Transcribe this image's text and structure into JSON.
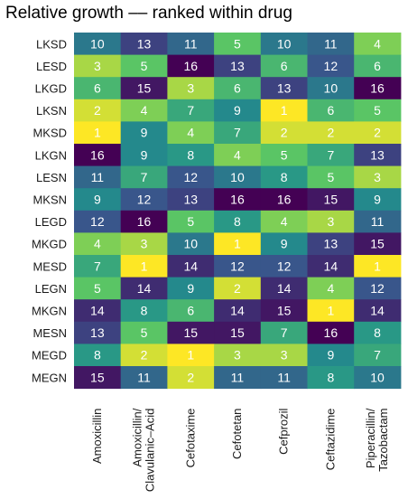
{
  "chart_data": {
    "type": "heatmap",
    "title": "Relative growth –– ranked within drug",
    "rows": [
      "LKSD",
      "LESD",
      "LKGD",
      "LKSN",
      "MKSD",
      "LKGN",
      "LESN",
      "MKSN",
      "LEGD",
      "MKGD",
      "MESD",
      "LEGN",
      "MKGN",
      "MESN",
      "MEGD",
      "MEGN"
    ],
    "columns": [
      "Amoxicillin",
      "Amoxicillin/\nClavulanic–Acid",
      "Cefotaxime",
      "Cefotetan",
      "Cefprozil",
      "Ceftazidime",
      "Piperacillin/\nTazobactam"
    ],
    "values": [
      [
        10,
        13,
        11,
        5,
        10,
        11,
        4
      ],
      [
        3,
        5,
        16,
        13,
        6,
        12,
        6
      ],
      [
        6,
        15,
        3,
        6,
        13,
        10,
        16
      ],
      [
        2,
        4,
        7,
        9,
        1,
        6,
        5
      ],
      [
        1,
        9,
        4,
        7,
        2,
        2,
        2
      ],
      [
        16,
        9,
        8,
        4,
        5,
        7,
        13
      ],
      [
        11,
        7,
        12,
        10,
        8,
        5,
        3
      ],
      [
        9,
        12,
        13,
        16,
        16,
        15,
        9
      ],
      [
        12,
        16,
        5,
        8,
        4,
        3,
        11
      ],
      [
        4,
        3,
        10,
        1,
        9,
        13,
        15
      ],
      [
        7,
        1,
        14,
        12,
        12,
        14,
        1
      ],
      [
        5,
        14,
        9,
        2,
        14,
        4,
        12
      ],
      [
        14,
        8,
        6,
        14,
        15,
        1,
        14
      ],
      [
        13,
        5,
        15,
        15,
        7,
        16,
        8
      ],
      [
        8,
        2,
        1,
        3,
        3,
        9,
        7
      ],
      [
        15,
        11,
        2,
        11,
        11,
        8,
        10
      ]
    ],
    "value_range": [
      1,
      16
    ],
    "colormap": "viridis (reversed: 1 = yellow, 16 = dark purple)",
    "colors": [
      "#fde725",
      "#5ec962",
      "#21918c",
      "#3b528b",
      "#440154"
    ],
    "legend": "none"
  }
}
